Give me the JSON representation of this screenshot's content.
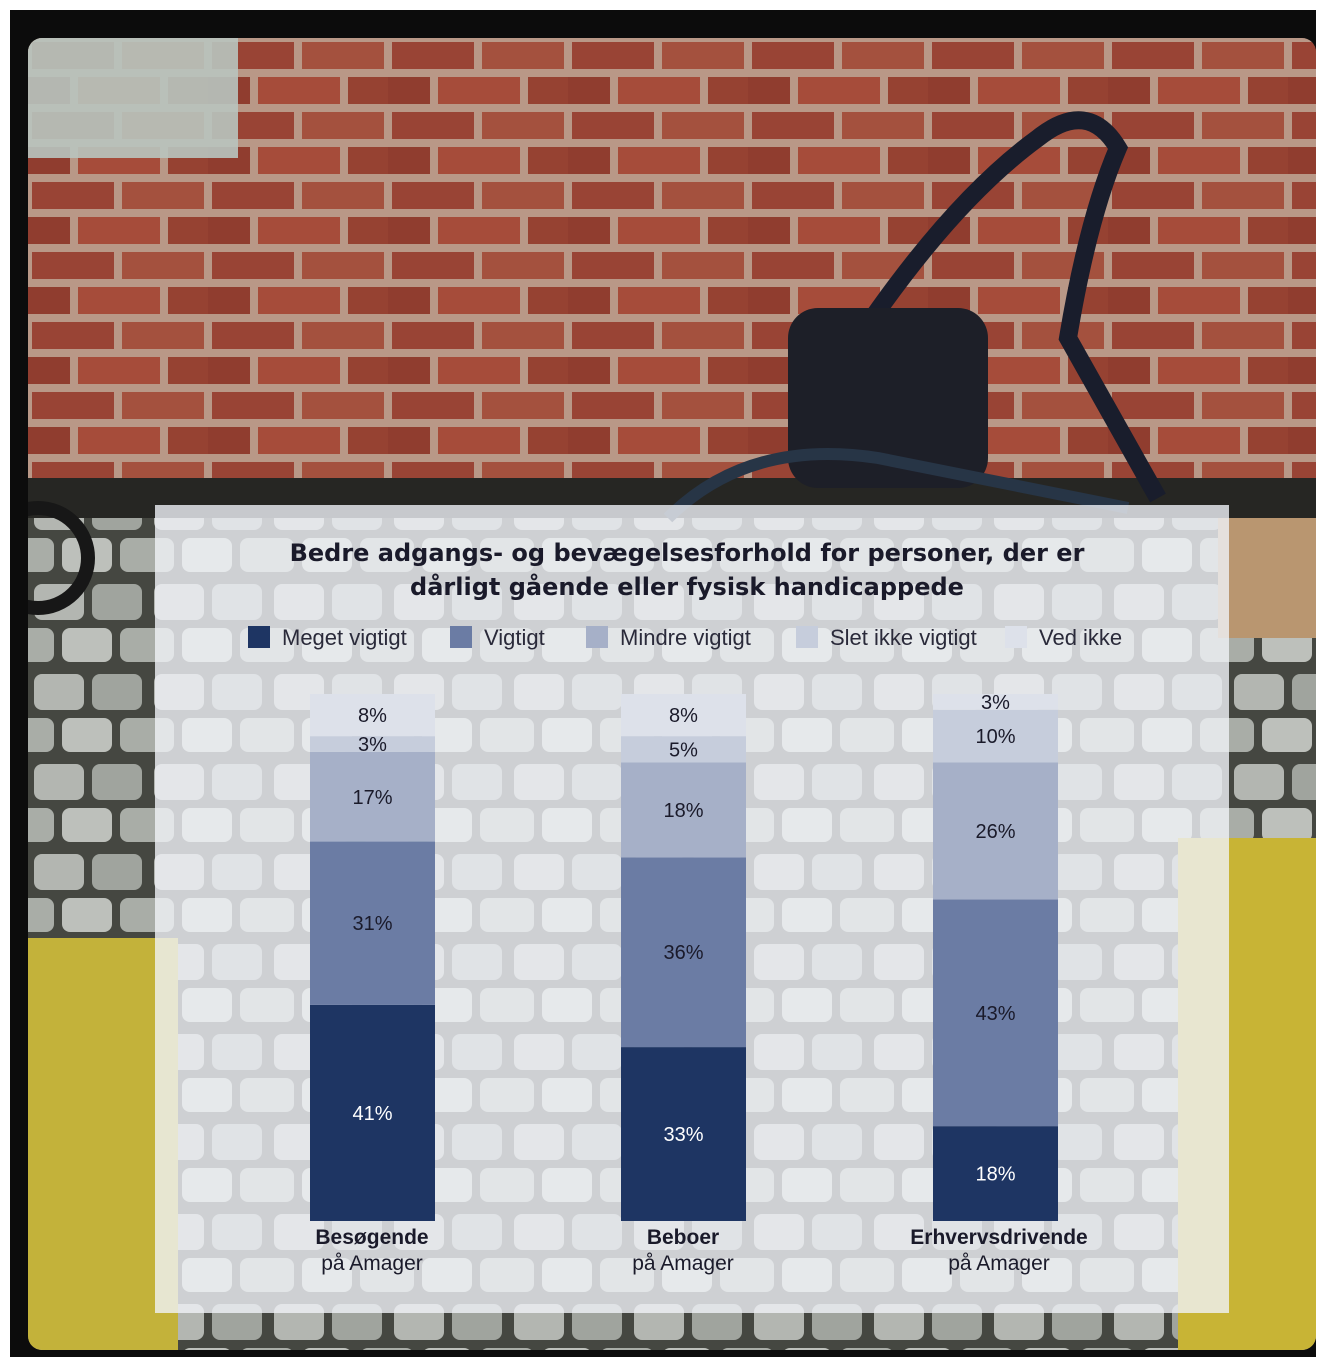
{
  "chart_data": {
    "type": "bar",
    "stacked": true,
    "title": [
      "Bedre adgangs- og bevægelsesforhold for personer, der er",
      "dårligt gående eller fysisk handicappede"
    ],
    "legend_position": "top",
    "categories": [
      {
        "main": "Besøgende",
        "sub": "på Amager"
      },
      {
        "main": "Beboer",
        "sub": "på Amager"
      },
      {
        "main": "Erhvervsdrivende",
        "sub": "på Amager"
      }
    ],
    "series": [
      {
        "name": "Meget vigtigt",
        "values": [
          41,
          33,
          18
        ],
        "labels": [
          "41%",
          "33%",
          "18%"
        ],
        "color": "#1e3563",
        "label_color": "#ffffff"
      },
      {
        "name": "Vigtigt",
        "values": [
          31,
          36,
          43
        ],
        "labels": [
          "31%",
          "36%",
          "43%"
        ],
        "color": "#6b7ca4",
        "label_color": "#1a1a2a"
      },
      {
        "name": "Mindre vigtigt",
        "values": [
          17,
          18,
          26
        ],
        "labels": [
          "17%",
          "18%",
          "26%"
        ],
        "color": "#a6b0c8",
        "label_color": "#1a1a2a"
      },
      {
        "name": "Slet ikke vigtigt",
        "values": [
          3,
          5,
          10
        ],
        "labels": [
          "3%",
          "5%",
          "10%"
        ],
        "color": "#c6cddc",
        "label_color": "#1a1a2a"
      },
      {
        "name": "Ved ikke",
        "values": [
          8,
          8,
          3
        ],
        "labels": [
          "8%",
          "8%",
          "3%"
        ],
        "color": "#dde1ea",
        "label_color": "#1a1a2a"
      }
    ]
  }
}
